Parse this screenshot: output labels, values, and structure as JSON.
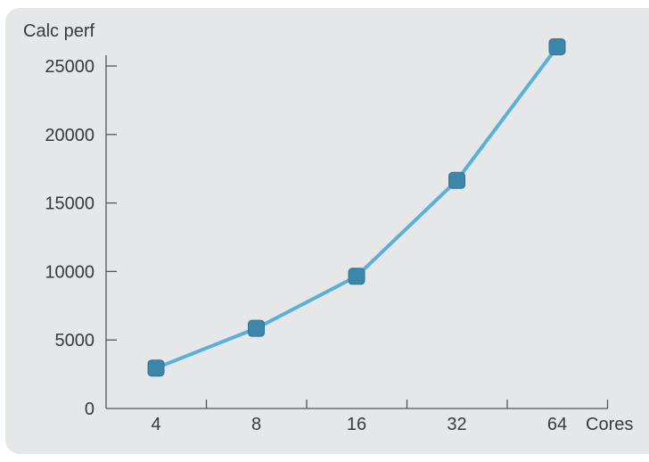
{
  "chart_data": {
    "type": "line",
    "ylabel": "Calc perf",
    "xlabel": "Cores",
    "categories": [
      "4",
      "8",
      "16",
      "32",
      "64"
    ],
    "series": [
      {
        "values": [
          2950,
          5850,
          9650,
          16650,
          26400
        ]
      }
    ],
    "ylim": [
      0,
      26000
    ],
    "yticks": [
      0,
      5000,
      10000,
      15000,
      20000,
      25000
    ],
    "grid": false,
    "colors": {
      "line": "#5bb0d8",
      "marker": "#3c86aa",
      "axis": "#555555",
      "background": "#e6e7e9"
    }
  }
}
